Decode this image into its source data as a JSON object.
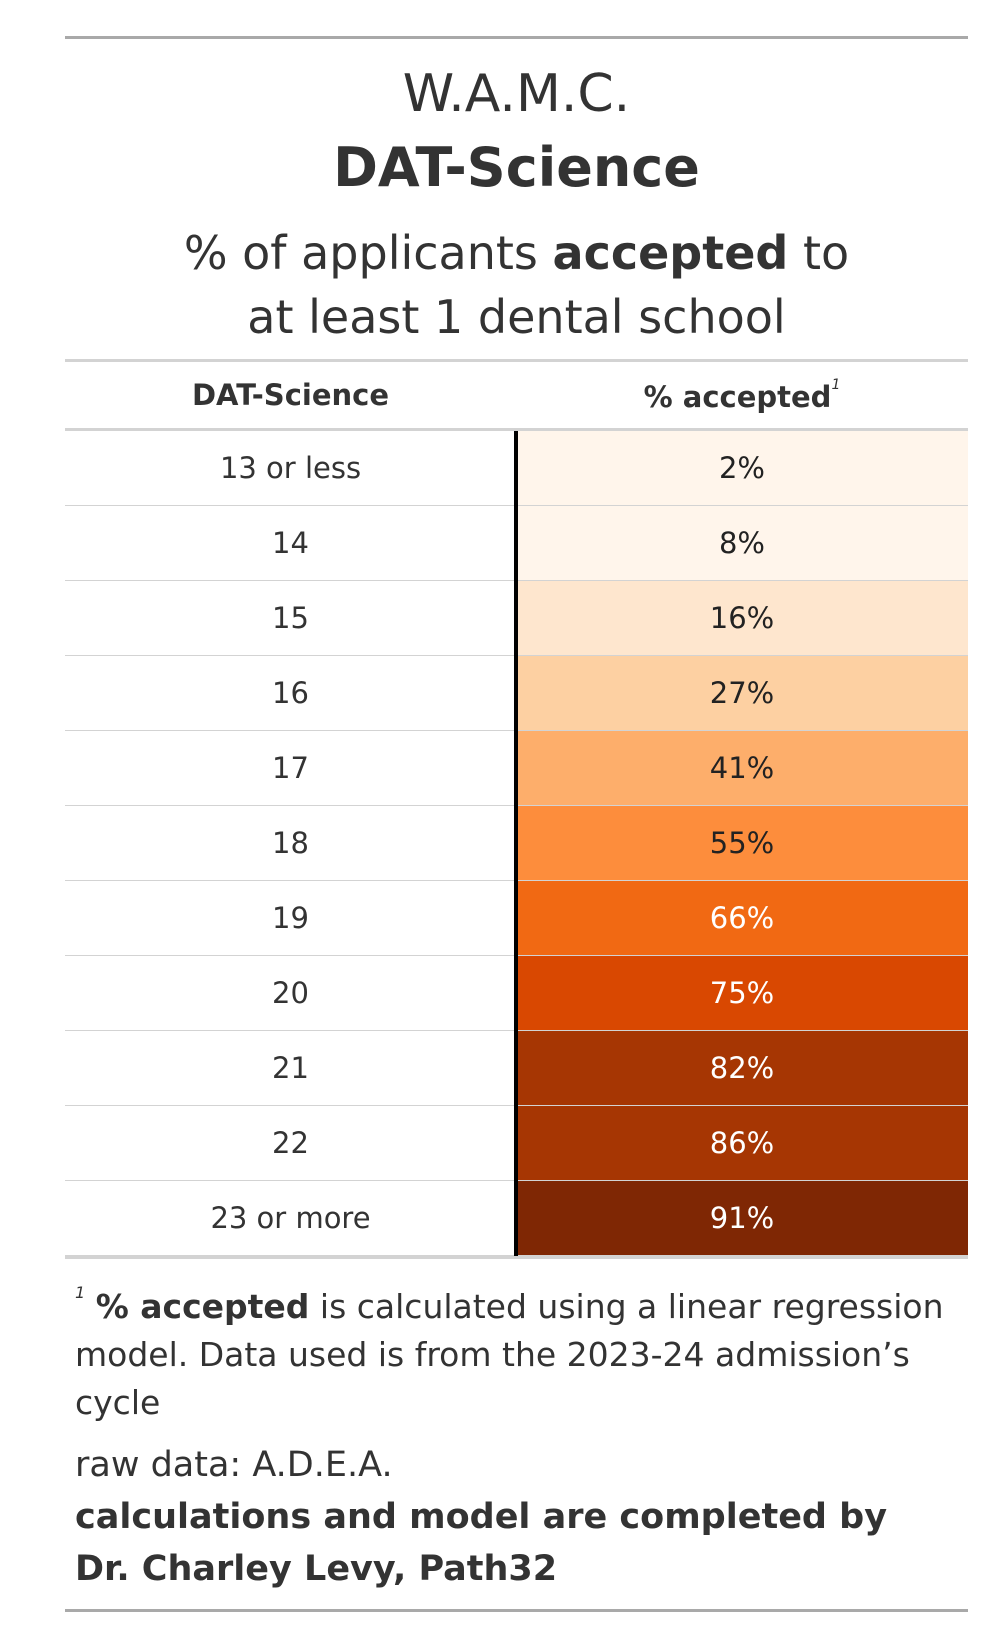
{
  "header": {
    "title": "W.A.M.C.",
    "title_bold": "DAT-Science",
    "subtitle_part1": "% of applicants ",
    "subtitle_bold": "accepted",
    "subtitle_part2": " to",
    "subtitle_line2": "at least 1 dental school"
  },
  "columns": {
    "col1": "DAT-Science",
    "col2": "% accepted",
    "col2_footnote_mark": "1"
  },
  "chart_data": {
    "type": "table",
    "columns": [
      "DAT-Science",
      "% accepted"
    ],
    "rows": [
      {
        "score": "13 or less",
        "accepted": "2%",
        "value": 2,
        "bg": "#fff5eb",
        "fg": "#222222"
      },
      {
        "score": "14",
        "accepted": "8%",
        "value": 8,
        "bg": "#fff5eb",
        "fg": "#222222"
      },
      {
        "score": "15",
        "accepted": "16%",
        "value": 16,
        "bg": "#fee6ce",
        "fg": "#222222"
      },
      {
        "score": "16",
        "accepted": "27%",
        "value": 27,
        "bg": "#fdd0a2",
        "fg": "#222222"
      },
      {
        "score": "17",
        "accepted": "41%",
        "value": 41,
        "bg": "#fdae6b",
        "fg": "#222222"
      },
      {
        "score": "18",
        "accepted": "55%",
        "value": 55,
        "bg": "#fd8d3c",
        "fg": "#222222"
      },
      {
        "score": "19",
        "accepted": "66%",
        "value": 66,
        "bg": "#f16913",
        "fg": "#ffffff"
      },
      {
        "score": "20",
        "accepted": "75%",
        "value": 75,
        "bg": "#d94801",
        "fg": "#ffffff"
      },
      {
        "score": "21",
        "accepted": "82%",
        "value": 82,
        "bg": "#a63603",
        "fg": "#ffffff"
      },
      {
        "score": "22",
        "accepted": "86%",
        "value": 86,
        "bg": "#a63603",
        "fg": "#ffffff"
      },
      {
        "score": "23 or more",
        "accepted": "91%",
        "value": 91,
        "bg": "#7f2704",
        "fg": "#ffffff"
      }
    ]
  },
  "footer": {
    "footnote_mark": "1",
    "footnote_bold": "% accepted",
    "footnote_text": " is calculated using a linear regression model. Data used is from the 2023-24 admission’s cycle",
    "source_line1": "raw data: A.D.E.A.",
    "source_line2": "calculations and model are completed by",
    "source_line3": "Dr. Charley Levy, Path32"
  }
}
